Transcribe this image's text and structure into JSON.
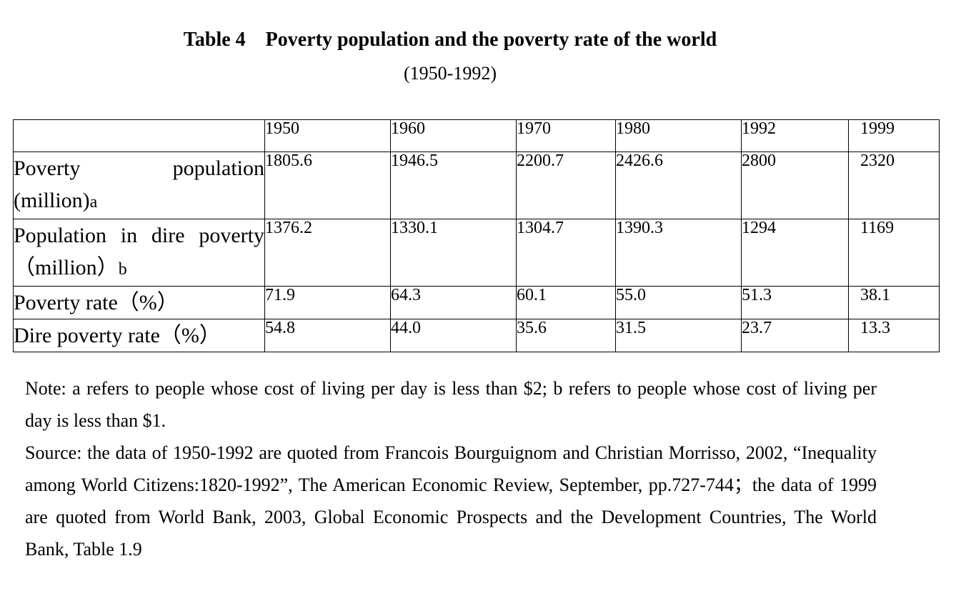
{
  "title": "Table 4    Poverty population and the poverty rate of the world",
  "subtitle": "(1950-1992)",
  "table": {
    "columns": [
      "",
      "1950",
      "1960",
      "1970",
      "1980",
      "1992",
      "1999"
    ],
    "rows": [
      {
        "label": "Poverty population (million)",
        "label_suffix": "a",
        "values": [
          "1805.6",
          "1946.5",
          "2200.7",
          "2426.6",
          "2800",
          "2320"
        ]
      },
      {
        "label": "Population in dire poverty（million）",
        "label_suffix": "b",
        "values": [
          "1376.2",
          "1330.1",
          "1304.7",
          "1390.3",
          "1294",
          "1169"
        ]
      },
      {
        "label": "Poverty rate（%）",
        "label_suffix": "",
        "values": [
          "71.9",
          "64.3",
          "60.1",
          "55.0",
          "51.3",
          "38.1"
        ]
      },
      {
        "label": "Dire poverty rate（%）",
        "label_suffix": "",
        "values": [
          "54.8",
          "44.0",
          "35.6",
          "31.5",
          "23.7",
          "13.3"
        ]
      }
    ]
  },
  "notes": {
    "note": "Note: a refers to people whose cost of living per day is less than $2; b refers to people whose cost of living per day is less than $1.",
    "source": "Source: the data of 1950-1992 are quoted from Francois Bourguignom and Christian Morrisso, 2002, “Inequality among World Citizens:1820-1992”, The American Economic Review, September, pp.727-744；the data of 1999 are quoted from World Bank, 2003, Global Economic Prospects and the Development Countries, The World Bank, Table 1.9"
  }
}
